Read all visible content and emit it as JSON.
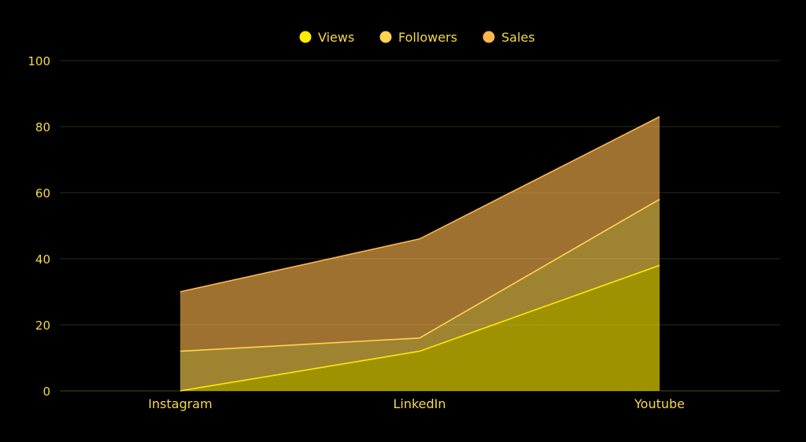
{
  "chart_data": {
    "type": "area",
    "stacked": true,
    "categories": [
      "Instagram",
      "LinkedIn",
      "Youtube"
    ],
    "series": [
      {
        "name": "Views",
        "values": [
          0,
          12,
          38
        ],
        "color": "#ffeb00"
      },
      {
        "name": "Followers",
        "values": [
          12,
          4,
          20
        ],
        "color": "#ffd54f"
      },
      {
        "name": "Sales",
        "values": [
          18,
          30,
          25
        ],
        "color": "#ffb74d"
      }
    ],
    "ylim": [
      0,
      100
    ],
    "yticks": [
      0,
      20,
      40,
      60,
      80,
      100
    ],
    "grid": true,
    "legend_position": "top-center",
    "text_color": "#f5d94a",
    "grid_color": "#2b2b18"
  }
}
